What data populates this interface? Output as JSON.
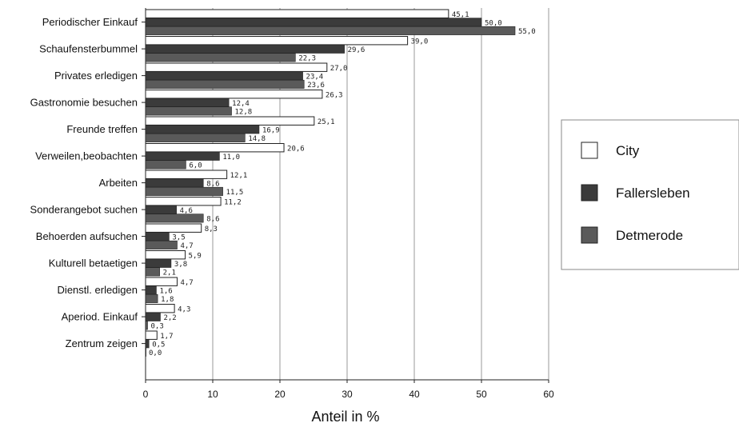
{
  "chart_data": {
    "type": "bar",
    "orientation": "horizontal",
    "categories": [
      "Periodischer Einkauf",
      "Schaufensterbummel",
      "Privates erledigen",
      "Gastronomie besuchen",
      "Freunde treffen",
      "Verweilen,beobachten",
      "Arbeiten",
      "Sonderangebot suchen",
      "Behoerden aufsuchen",
      "Kulturell betaetigen",
      "Dienstl. erledigen",
      "Aperiod. Einkauf",
      "Zentrum zeigen"
    ],
    "series": [
      {
        "name": "City",
        "color": "#ffffff",
        "values": [
          45.1,
          39.0,
          27.0,
          26.3,
          25.1,
          20.6,
          12.1,
          11.2,
          8.3,
          5.9,
          4.7,
          4.3,
          1.7
        ],
        "labels": [
          "45,1",
          "39,0",
          "27,0",
          "26,3",
          "25,1",
          "20,6",
          "12,1",
          "11,2",
          "8,3",
          "5,9",
          "4,7",
          "4,3",
          "1,7"
        ]
      },
      {
        "name": "Fallersleben",
        "color": "#3b3b3b",
        "values": [
          50.0,
          29.6,
          23.4,
          12.4,
          16.9,
          11.0,
          8.6,
          4.6,
          3.5,
          3.8,
          1.6,
          2.2,
          0.5
        ],
        "labels": [
          "50,0",
          "29,6",
          "23,4",
          "12,4",
          "16,9",
          "11,0",
          "8,6",
          "4,6",
          "3,5",
          "3,8",
          "1,6",
          "2,2",
          "0,5"
        ]
      },
      {
        "name": "Detmerode",
        "color": "#5a5a5a",
        "values": [
          55.0,
          22.3,
          23.6,
          12.8,
          14.8,
          6.0,
          11.5,
          8.6,
          4.7,
          2.1,
          1.8,
          0.3,
          0.0
        ],
        "labels": [
          "55,0",
          "22,3",
          "23,6",
          "12,8",
          "14,8",
          "6,0",
          "11,5",
          "8,6",
          "4,7",
          "2,1",
          "1,8",
          "0,3",
          "0,0"
        ]
      }
    ],
    "xlabel": "Anteil in %",
    "xlim": [
      0,
      60
    ],
    "xticks": [
      "0",
      "10",
      "20",
      "30",
      "40",
      "50",
      "60"
    ],
    "grid": "vertical",
    "legend_position": "right"
  }
}
